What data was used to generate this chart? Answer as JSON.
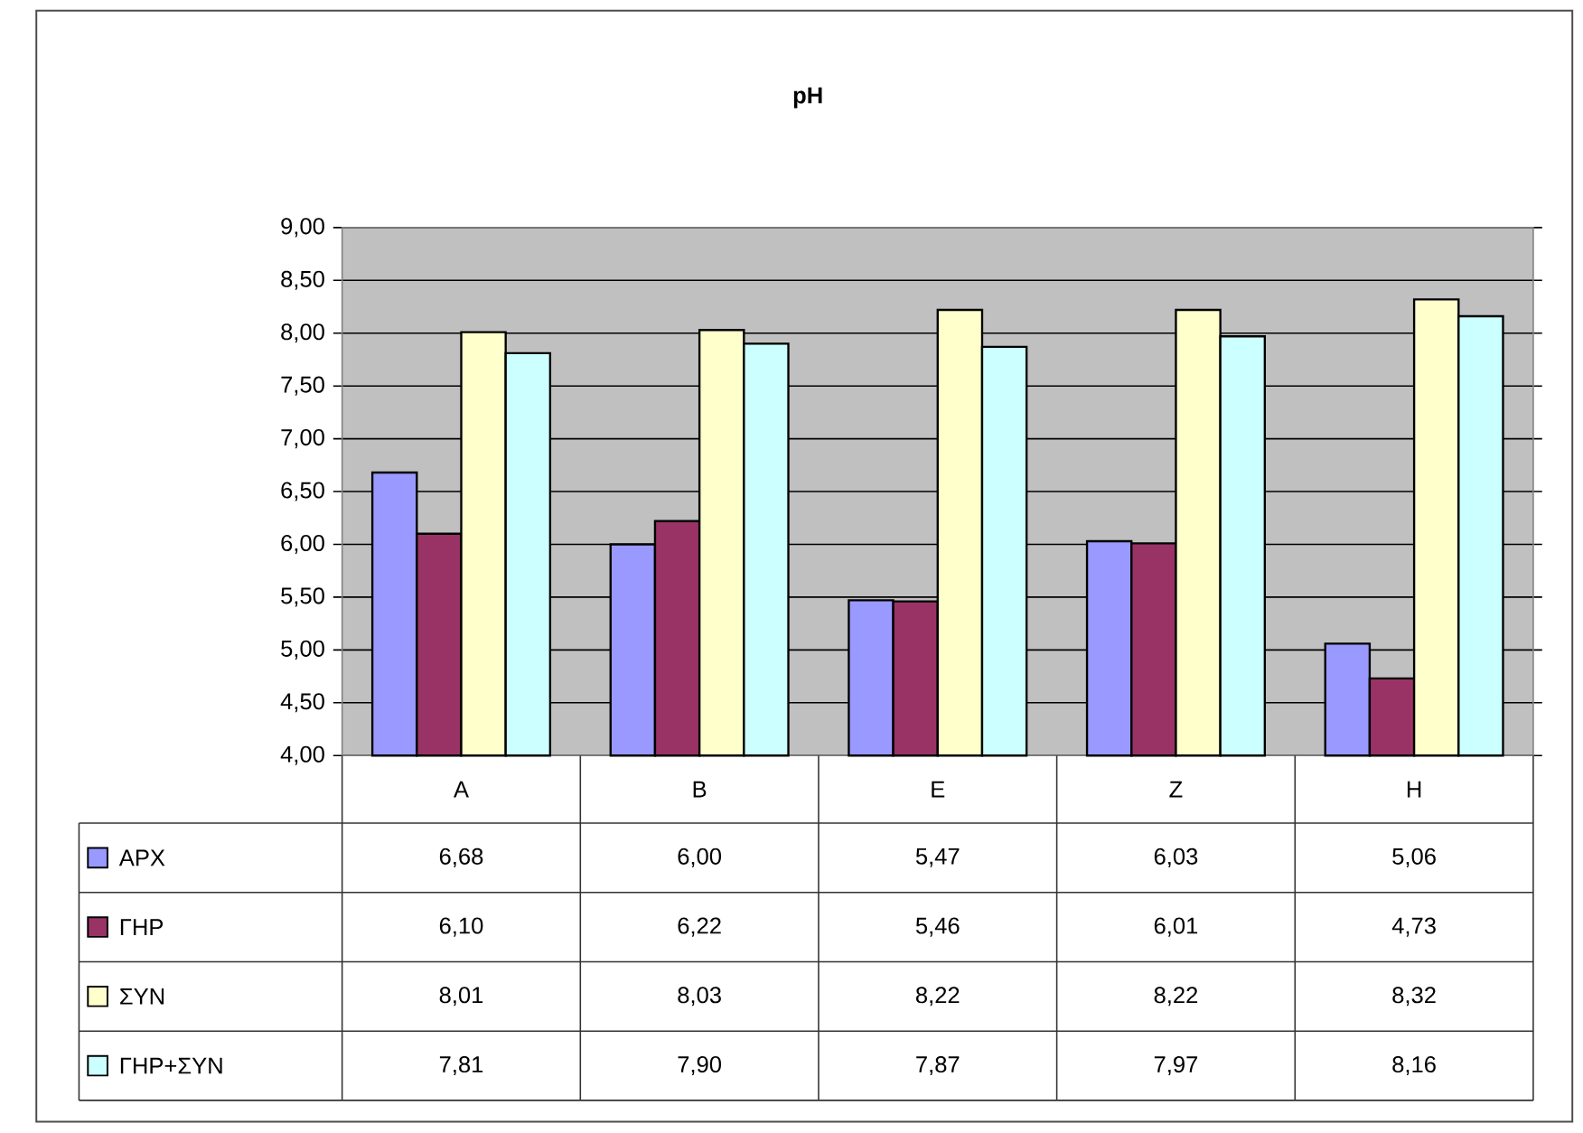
{
  "chart_data": {
    "type": "bar",
    "title": "pH",
    "categories": [
      "Α",
      "Β",
      "Ε",
      "Ζ",
      "Η"
    ],
    "series": [
      {
        "name": "ΑΡΧ",
        "color": "#9999ff",
        "values": [
          6.68,
          6.0,
          5.47,
          6.03,
          5.06
        ],
        "value_labels": [
          "6,68",
          "6,00",
          "5,47",
          "6,03",
          "5,06"
        ]
      },
      {
        "name": "ΓΗΡ",
        "color": "#993366",
        "values": [
          6.1,
          6.22,
          5.46,
          6.01,
          4.73
        ],
        "value_labels": [
          "6,10",
          "6,22",
          "5,46",
          "6,01",
          "4,73"
        ]
      },
      {
        "name": "ΣΥΝ",
        "color": "#ffffcc",
        "values": [
          8.01,
          8.03,
          8.22,
          8.22,
          8.32
        ],
        "value_labels": [
          "8,01",
          "8,03",
          "8,22",
          "8,22",
          "8,32"
        ]
      },
      {
        "name": "ΓΗΡ+ΣΥΝ",
        "color": "#ccffff",
        "values": [
          7.81,
          7.9,
          7.87,
          7.97,
          8.16
        ],
        "value_labels": [
          "7,81",
          "7,90",
          "7,87",
          "7,97",
          "8,16"
        ]
      }
    ],
    "ylim": [
      4,
      9
    ],
    "yticks": [
      {
        "value": 4,
        "label": "4,00"
      },
      {
        "value": 4.5,
        "label": "4,50"
      },
      {
        "value": 5,
        "label": "5,00"
      },
      {
        "value": 5.5,
        "label": "5,50"
      },
      {
        "value": 6,
        "label": "6,00"
      },
      {
        "value": 6.5,
        "label": "6,50"
      },
      {
        "value": 7,
        "label": "7,00"
      },
      {
        "value": 7.5,
        "label": "7,50"
      },
      {
        "value": 8,
        "label": "8,00"
      },
      {
        "value": 8.5,
        "label": "8,50"
      },
      {
        "value": 9,
        "label": "9,00"
      }
    ],
    "grid": true,
    "legend": "bottom"
  }
}
